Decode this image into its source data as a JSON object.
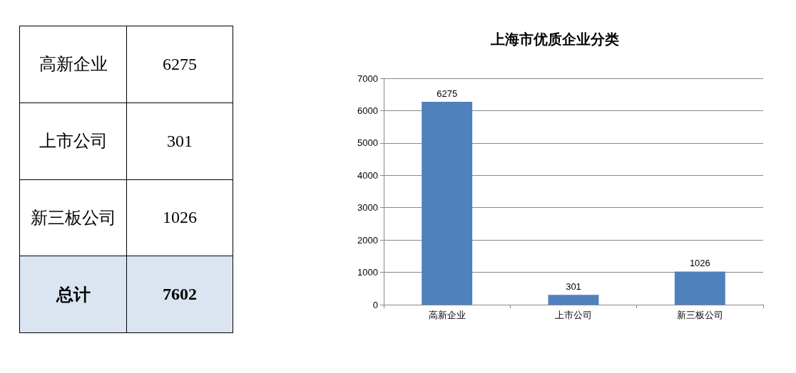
{
  "chart_data": [
    {
      "type": "other",
      "categories": [
        "高新企业",
        "上市公司",
        "新三板公司",
        "总计"
      ],
      "values": [
        6275,
        301,
        1026,
        7602
      ],
      "data_labels": true
    },
    {
      "type": "bar",
      "title": "上海市优质企业分类",
      "categories": [
        "高新企业",
        "上市公司",
        "新三板公司"
      ],
      "values": [
        6275,
        301,
        1026
      ],
      "color": "#4f81bd",
      "ylim": [
        0,
        7000
      ],
      "yticks": [
        0,
        1000,
        2000,
        3000,
        4000,
        5000,
        6000,
        7000
      ],
      "grid": "y",
      "data_labels": true
    }
  ]
}
